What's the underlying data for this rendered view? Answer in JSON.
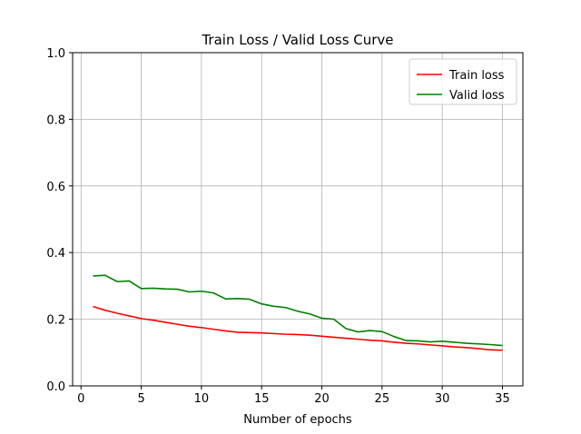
{
  "chart_data": {
    "type": "line",
    "title": "Train Loss / Valid Loss Curve",
    "xlabel": "Number of epochs",
    "ylabel": "",
    "xlim": [
      -0.7,
      36.7
    ],
    "ylim": [
      0.0,
      1.0
    ],
    "xticks": [
      0,
      5,
      10,
      15,
      20,
      25,
      30,
      35
    ],
    "yticks": [
      0.0,
      0.2,
      0.4,
      0.6,
      0.8,
      1.0
    ],
    "grid": true,
    "legend": {
      "position": "top-right"
    },
    "x": [
      1,
      2,
      3,
      4,
      5,
      6,
      7,
      8,
      9,
      10,
      11,
      12,
      13,
      14,
      15,
      16,
      17,
      18,
      19,
      20,
      21,
      22,
      23,
      24,
      25,
      26,
      27,
      28,
      29,
      30,
      31,
      32,
      33,
      34,
      35
    ],
    "series": [
      {
        "name": "Train loss",
        "color": "#ff0000",
        "values": [
          0.238,
          0.227,
          0.218,
          0.21,
          0.202,
          0.197,
          0.191,
          0.185,
          0.179,
          0.175,
          0.17,
          0.165,
          0.161,
          0.16,
          0.159,
          0.157,
          0.155,
          0.154,
          0.152,
          0.149,
          0.146,
          0.143,
          0.14,
          0.137,
          0.135,
          0.131,
          0.128,
          0.126,
          0.123,
          0.12,
          0.117,
          0.115,
          0.112,
          0.108,
          0.107
        ]
      },
      {
        "name": "Valid loss",
        "color": "#008000",
        "values": [
          0.33,
          0.332,
          0.313,
          0.315,
          0.292,
          0.293,
          0.291,
          0.29,
          0.282,
          0.284,
          0.279,
          0.261,
          0.262,
          0.26,
          0.246,
          0.239,
          0.235,
          0.224,
          0.216,
          0.203,
          0.2,
          0.172,
          0.162,
          0.166,
          0.163,
          0.148,
          0.136,
          0.135,
          0.132,
          0.134,
          0.131,
          0.128,
          0.126,
          0.124,
          0.121
        ]
      }
    ]
  }
}
